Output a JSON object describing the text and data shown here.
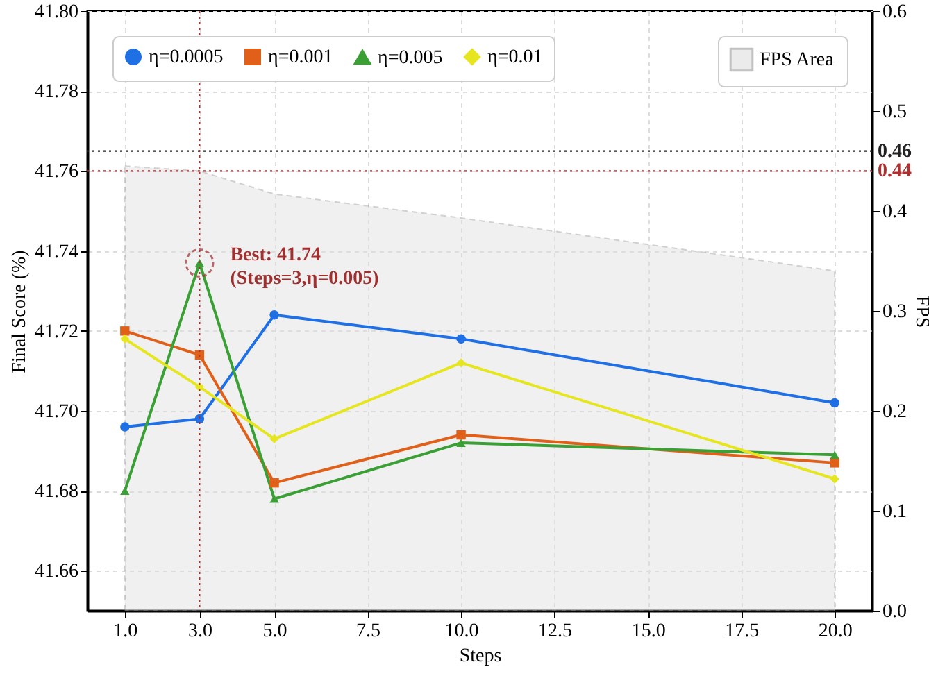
{
  "chart_data": {
    "type": "line",
    "xlabel": "Steps",
    "ylabel": "Final Score (%)",
    "y2label": "FPS",
    "x": [
      1,
      3,
      5,
      10,
      20
    ],
    "xlim": [
      0,
      21
    ],
    "xticks": [
      {
        "value": 1,
        "label": "1.0"
      },
      {
        "value": 3,
        "label": "3.0"
      },
      {
        "value": 5,
        "label": "5.0"
      },
      7.5,
      {
        "value": 10,
        "label": "10.0"
      },
      12.5,
      {
        "value": 15,
        "label": "15.0"
      },
      17.5,
      {
        "value": 20,
        "label": "20.0"
      }
    ],
    "ylim": [
      41.65,
      41.8
    ],
    "yticks": [
      {
        "value": 41.66,
        "label": "41.66"
      },
      {
        "value": 41.68,
        "label": "41.68"
      },
      {
        "value": 41.7,
        "label": "41.70"
      },
      {
        "value": 41.72,
        "label": "41.72"
      },
      {
        "value": 41.74,
        "label": "41.74"
      },
      {
        "value": 41.76,
        "label": "41.76"
      },
      {
        "value": 41.78,
        "label": "41.78"
      },
      {
        "value": 41.8,
        "label": "41.80"
      }
    ],
    "y2lim": [
      0,
      0.6
    ],
    "y2ticks": [
      {
        "value": 0,
        "label": "0.0"
      },
      0.1,
      0.2,
      0.3,
      0.4,
      0.5,
      0.6
    ],
    "series": [
      {
        "name": "η=0.0005",
        "color": "#1f6fe5",
        "marker": "circle",
        "values": [
          41.696,
          41.698,
          41.724,
          41.718,
          41.702
        ]
      },
      {
        "name": "η=0.001",
        "color": "#e0601a",
        "marker": "square",
        "values": [
          41.72,
          41.714,
          41.682,
          41.694,
          41.687
        ]
      },
      {
        "name": "η=0.005",
        "color": "#3aa035",
        "marker": "triangle",
        "values": [
          41.68,
          41.737,
          41.678,
          41.692,
          41.689
        ]
      },
      {
        "name": "η=0.01",
        "color": "#e6e620",
        "marker": "diamond",
        "values": [
          41.718,
          41.706,
          41.693,
          41.712,
          41.683
        ]
      },
      {
        "name": "FPS Area",
        "type": "area",
        "axis": "y2",
        "color": "#dedede",
        "values": [
          0.445,
          0.44,
          0.417,
          0.393,
          0.34
        ]
      }
    ],
    "ref_lines": [
      {
        "axis": "y2",
        "value": 0.46,
        "label": "0.46",
        "color": "#222222",
        "line_style": "dotted"
      },
      {
        "axis": "y2",
        "value": 0.44,
        "label": "0.44",
        "color": "#b03030",
        "line_style": "dotted"
      },
      {
        "axis": "x",
        "value": 3,
        "color": "#b03030",
        "line_style": "dotted"
      }
    ],
    "annotations": [
      {
        "text": "Best: 41.74\n(Steps=3,η=0.005)",
        "x": 3,
        "y": 41.737
      }
    ],
    "grid": true,
    "legend": "top",
    "line_style": "solid"
  }
}
